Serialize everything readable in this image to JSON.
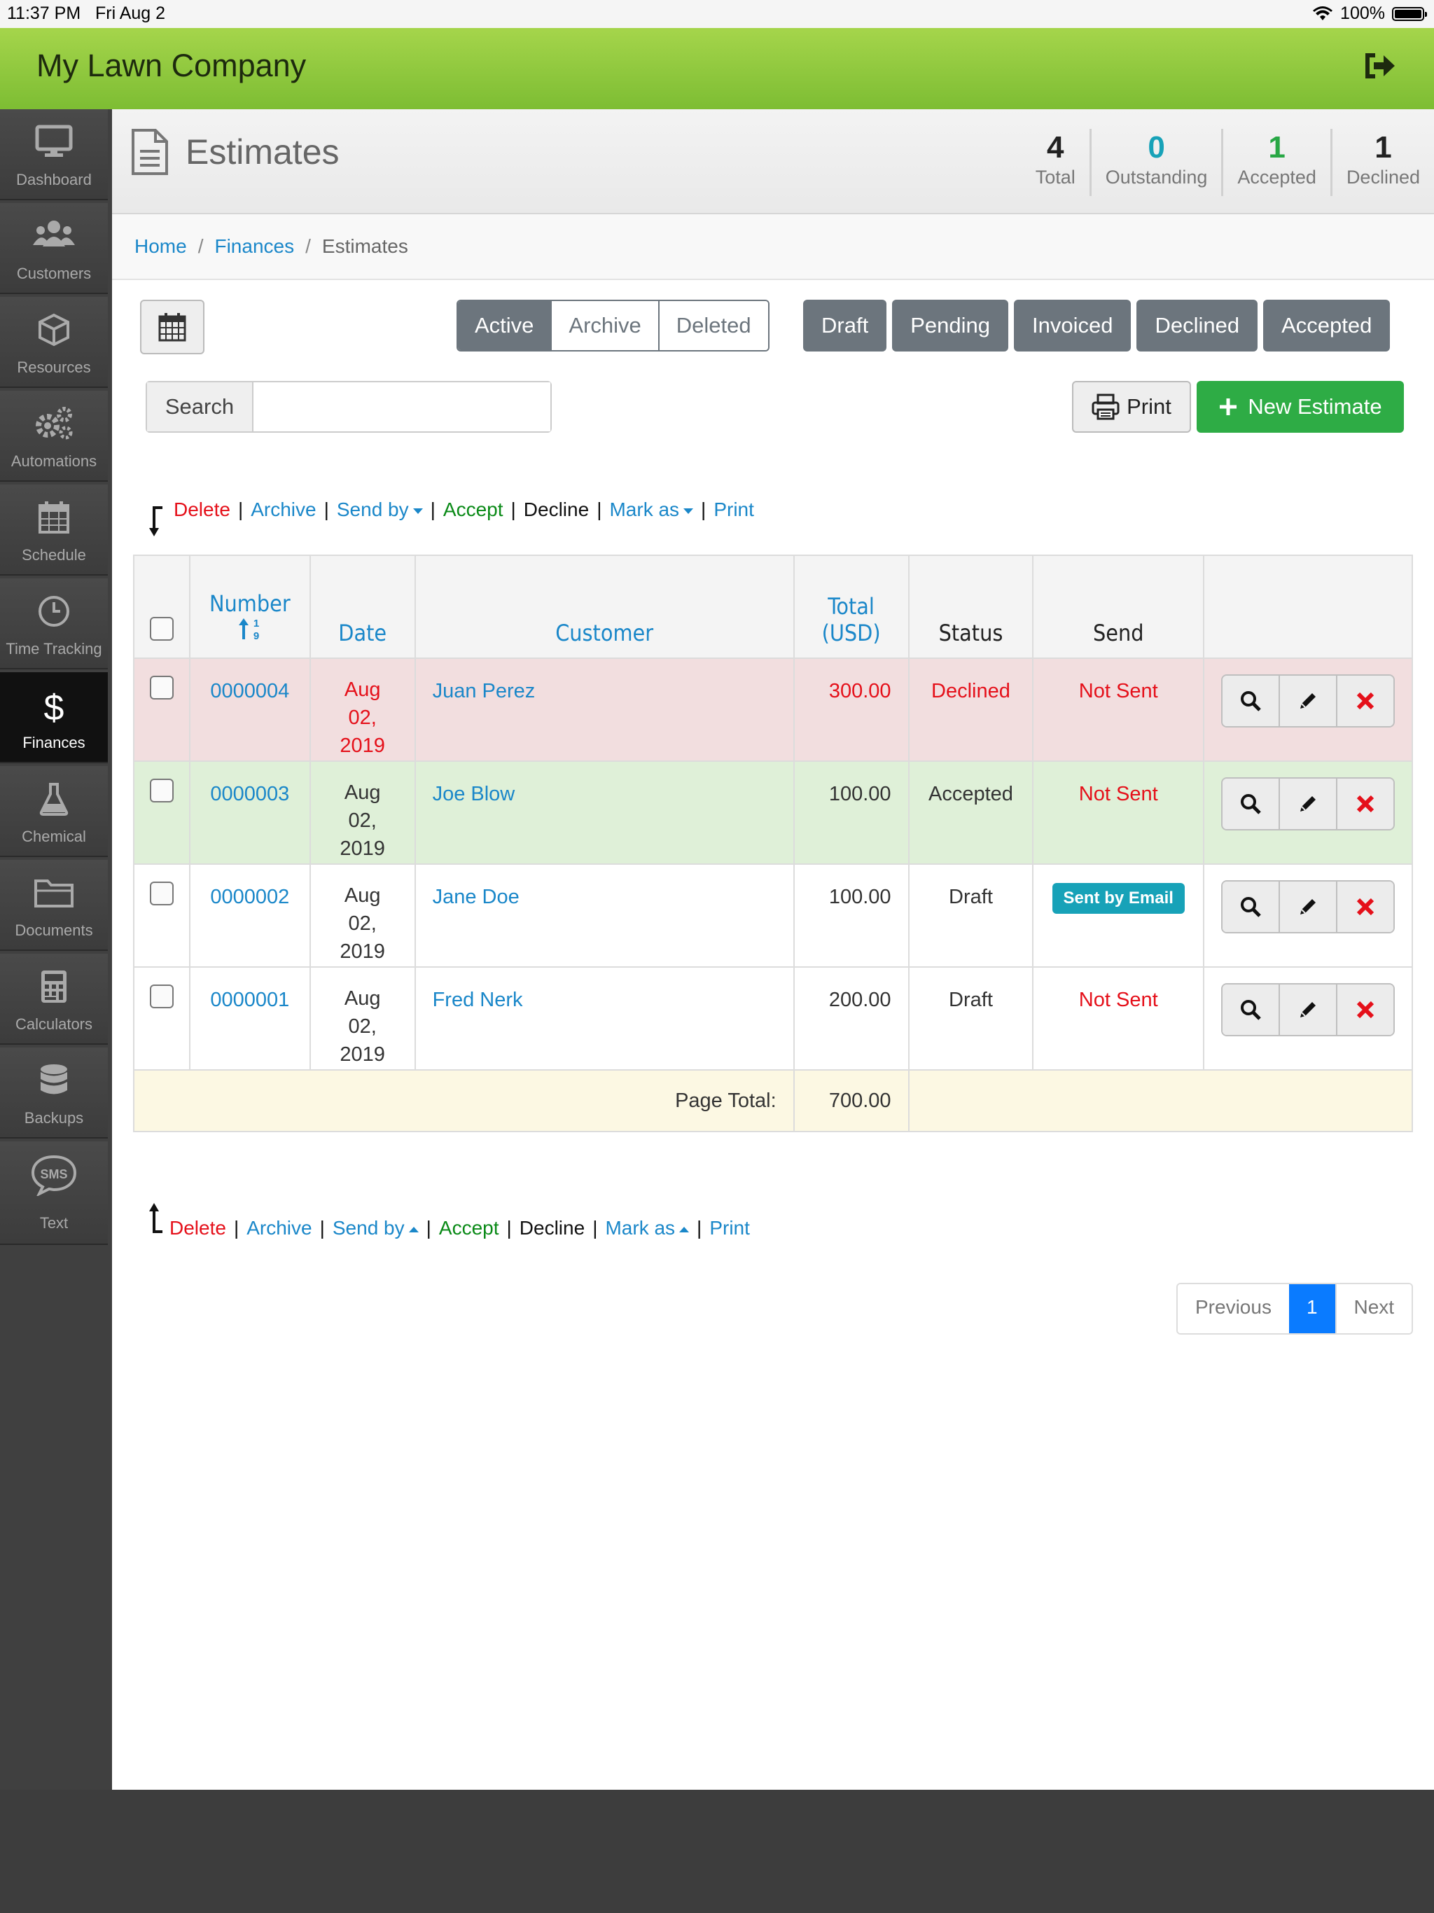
{
  "statusbar": {
    "time": "11:37 PM",
    "date": "Fri Aug 2",
    "battery": "100%"
  },
  "app": {
    "title": "My Lawn Company"
  },
  "sidebar": {
    "items": [
      {
        "label": "Dashboard",
        "icon": "monitor-icon"
      },
      {
        "label": "Customers",
        "icon": "users-icon"
      },
      {
        "label": "Resources",
        "icon": "cube-icon"
      },
      {
        "label": "Automations",
        "icon": "gears-icon"
      },
      {
        "label": "Schedule",
        "icon": "calendar-icon"
      },
      {
        "label": "Time Tracking",
        "icon": "clock-icon"
      },
      {
        "label": "Finances",
        "icon": "dollar-icon",
        "active": true
      },
      {
        "label": "Chemical",
        "icon": "flask-icon"
      },
      {
        "label": "Documents",
        "icon": "folder-icon"
      },
      {
        "label": "Calculators",
        "icon": "calculator-icon"
      },
      {
        "label": "Backups",
        "icon": "database-icon"
      },
      {
        "label": "Text",
        "icon": "sms-icon"
      }
    ]
  },
  "page": {
    "title": "Estimates"
  },
  "stats": [
    {
      "value": "4",
      "label": "Total",
      "color": "#222222"
    },
    {
      "value": "0",
      "label": "Outstanding",
      "color": "#17a2b8"
    },
    {
      "value": "1",
      "label": "Accepted",
      "color": "#28a745"
    },
    {
      "value": "1",
      "label": "Declined",
      "color": "#222222"
    }
  ],
  "breadcrumb": {
    "home": "Home",
    "finances": "Finances",
    "current": "Estimates",
    "sep": "/"
  },
  "view_tabs": {
    "active": "Active",
    "archive": "Archive",
    "deleted": "Deleted"
  },
  "filters": {
    "draft": "Draft",
    "pending": "Pending",
    "invoiced": "Invoiced",
    "declined": "Declined",
    "accepted": "Accepted"
  },
  "search": {
    "label": "Search",
    "value": "",
    "placeholder": ""
  },
  "toolbar": {
    "print": "Print",
    "new_estimate": "New Estimate"
  },
  "bulk_actions": {
    "delete": "Delete",
    "archive": "Archive",
    "send_by": "Send by",
    "accept": "Accept",
    "decline": "Decline",
    "mark_as": "Mark as",
    "print": "Print",
    "sep": "|"
  },
  "table": {
    "headers": {
      "number": "Number",
      "date": "Date",
      "customer": "Customer",
      "total_line1": "Total",
      "total_line2": "(USD)",
      "status": "Status",
      "send": "Send"
    },
    "rows": [
      {
        "number": "0000004",
        "date": [
          "Aug",
          "02,",
          "2019"
        ],
        "customer": "Juan Perez",
        "total": "300.00",
        "status": "Declined",
        "send": "Not Sent"
      },
      {
        "number": "0000003",
        "date": [
          "Aug",
          "02,",
          "2019"
        ],
        "customer": "Joe Blow",
        "total": "100.00",
        "status": "Accepted",
        "send": "Not Sent"
      },
      {
        "number": "0000002",
        "date": [
          "Aug",
          "02,",
          "2019"
        ],
        "customer": "Jane Doe",
        "total": "100.00",
        "status": "Draft",
        "send": "Sent by Email"
      },
      {
        "number": "0000001",
        "date": [
          "Aug",
          "02,",
          "2019"
        ],
        "customer": "Fred Nerk",
        "total": "200.00",
        "status": "Draft",
        "send": "Not Sent"
      }
    ],
    "footer": {
      "label": "Page Total:",
      "value": "700.00"
    }
  },
  "pagination": {
    "previous": "Previous",
    "page": "1",
    "next": "Next"
  },
  "colors": {
    "brand_green": "#7dbd33",
    "link": "#1a87c9",
    "danger": "#e5101a",
    "success_button": "#2eac45",
    "filter_gray": "#6c757d"
  }
}
